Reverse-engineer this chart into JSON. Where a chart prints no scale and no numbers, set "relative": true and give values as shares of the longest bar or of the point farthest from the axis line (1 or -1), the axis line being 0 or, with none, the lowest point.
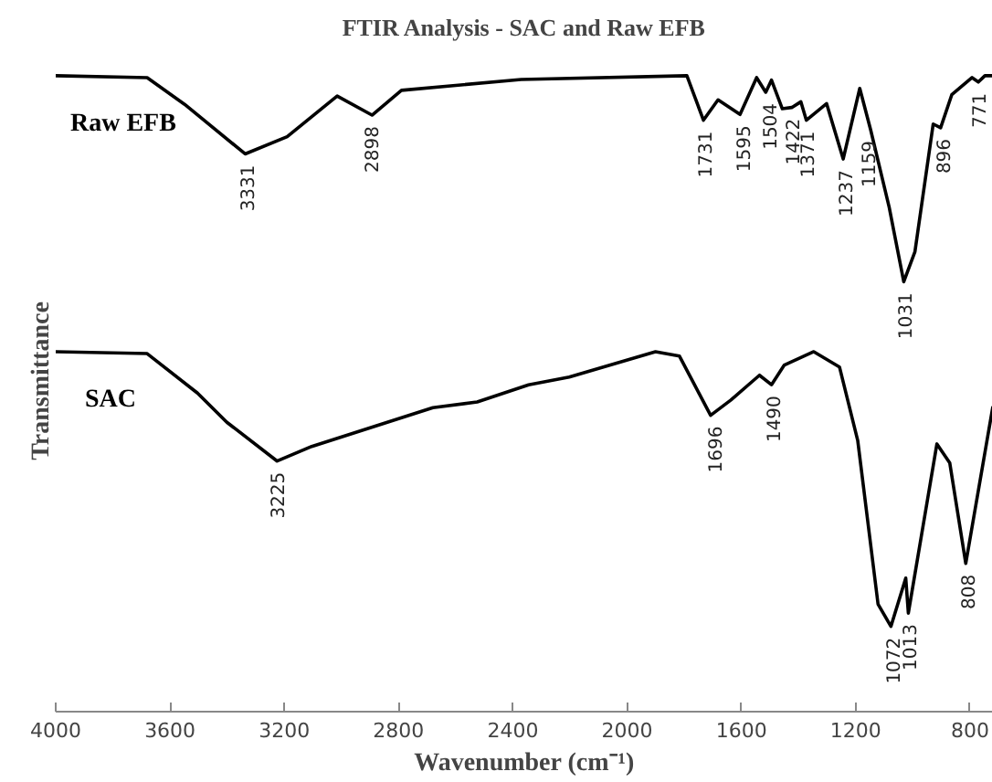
{
  "chart_data": {
    "type": "line",
    "title": "FTIR Analysis - SAC and Raw EFB",
    "xlabel": "Wavenumber (cm⁻¹)",
    "ylabel": "Transmittance",
    "relative": true,
    "xlim": [
      4000,
      720
    ],
    "xticks": [
      4000,
      3600,
      3200,
      2800,
      2400,
      2000,
      1600,
      1200,
      800
    ],
    "grid": false,
    "marker": "none",
    "line_style": "solid",
    "series": [
      {
        "name": "Raw EFB",
        "color": "#000000",
        "x": [
          4000,
          3680,
          3549,
          3337,
          3190,
          3015,
          2893,
          2790,
          2371,
          1791,
          1733,
          1682,
          1605,
          1547,
          1515,
          1495,
          1457,
          1424,
          1392,
          1373,
          1302,
          1244,
          1186,
          1148,
          1083,
          1032,
          993,
          929,
          903,
          864,
          793,
          771,
          748,
          720
        ],
        "values": [
          1.0,
          0.997,
          0.955,
          0.877,
          0.904,
          0.968,
          0.938,
          0.977,
          0.994,
          1.0,
          0.93,
          0.962,
          0.939,
          0.997,
          0.974,
          0.993,
          0.948,
          0.95,
          0.959,
          0.93,
          0.956,
          0.869,
          0.98,
          0.915,
          0.793,
          0.676,
          0.723,
          0.924,
          0.918,
          0.97,
          0.997,
          0.99,
          1.0,
          1.0
        ]
      },
      {
        "name": "SAC",
        "color": "#000000",
        "x": [
          4000,
          3680,
          3504,
          3401,
          3225,
          3104,
          2680,
          2525,
          2345,
          2203,
          1901,
          1817,
          1708,
          1637,
          1537,
          1495,
          1450,
          1347,
          1257,
          1193,
          1122,
          1077,
          1025,
          1016,
          916,
          871,
          815,
          737,
          720
        ],
        "values": [
          0.566,
          0.563,
          0.501,
          0.455,
          0.394,
          0.417,
          0.478,
          0.487,
          0.514,
          0.526,
          0.566,
          0.559,
          0.466,
          0.49,
          0.529,
          0.514,
          0.545,
          0.566,
          0.542,
          0.426,
          0.169,
          0.134,
          0.21,
          0.155,
          0.421,
          0.391,
          0.233,
          0.436,
          0.48
        ]
      }
    ],
    "annotations": [
      {
        "text": "3331",
        "x": 3331,
        "y": 0.877
      },
      {
        "text": "2898",
        "x": 2898,
        "y": 0.938
      },
      {
        "text": "1731",
        "x": 1731,
        "y": 0.93
      },
      {
        "text": "1595",
        "x": 1595,
        "y": 0.939
      },
      {
        "text": "1504",
        "x": 1504,
        "y": 0.974
      },
      {
        "text": "1422",
        "x": 1422,
        "y": 0.95
      },
      {
        "text": "1371",
        "x": 1371,
        "y": 0.93
      },
      {
        "text": "1237",
        "x": 1237,
        "y": 0.869
      },
      {
        "text": "1159",
        "x": 1159,
        "y": 0.915
      },
      {
        "text": "896",
        "x": 896,
        "y": 0.918
      },
      {
        "text": "771",
        "x": 771,
        "y": 0.99
      },
      {
        "text": "1031",
        "x": 1031,
        "y": 0.676
      },
      {
        "text": "3225",
        "x": 3225,
        "y": 0.394
      },
      {
        "text": "1696",
        "x": 1696,
        "y": 0.466
      },
      {
        "text": "1490",
        "x": 1490,
        "y": 0.514
      },
      {
        "text": "1072",
        "x": 1072,
        "y": 0.134
      },
      {
        "text": "1013",
        "x": 1013,
        "y": 0.155
      },
      {
        "text": "808",
        "x": 808,
        "y": 0.233
      }
    ]
  }
}
